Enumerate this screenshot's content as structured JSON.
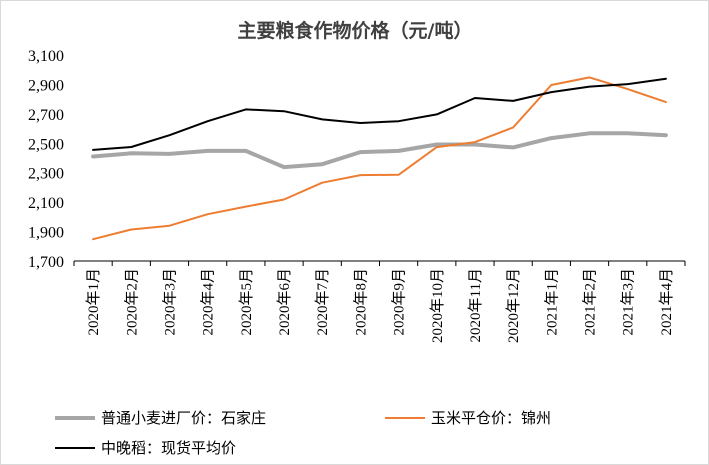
{
  "chart_data": {
    "type": "line",
    "title": "主要粮食作物价格（元/吨）",
    "xlabel": "",
    "ylabel": "",
    "ylim": [
      1700,
      3100
    ],
    "yticks": [
      1700,
      1900,
      2100,
      2300,
      2500,
      2700,
      2900,
      3100
    ],
    "ytick_labels": [
      "1,700",
      "1,900",
      "2,100",
      "2,300",
      "2,500",
      "2,700",
      "2,900",
      "3,100"
    ],
    "grid": false,
    "legend_position": "bottom",
    "categories": [
      "2020年1月",
      "2020年2月",
      "2020年3月",
      "2020年4月",
      "2020年5月",
      "2020年6月",
      "2020年7月",
      "2020年8月",
      "2020年9月",
      "2020年10月",
      "2020年11月",
      "2020年12月",
      "2021年1月",
      "2021年2月",
      "2021年3月",
      "2021年4月"
    ],
    "series": [
      {
        "name": "普通小麦进厂价：石家庄",
        "color": "#a6a6a6",
        "width": 4,
        "values": [
          2410,
          2432,
          2428,
          2448,
          2448,
          2338,
          2358,
          2440,
          2448,
          2492,
          2492,
          2472,
          2535,
          2568,
          2568,
          2555
        ]
      },
      {
        "name": "玉米平仓价：锦州",
        "color": "#ed7d31",
        "width": 2,
        "values": [
          1848,
          1914,
          1940,
          2018,
          2070,
          2118,
          2232,
          2284,
          2286,
          2474,
          2508,
          2608,
          2896,
          2948,
          2868,
          2780
        ]
      },
      {
        "name": "中晚稻：现货平均价",
        "color": "#000000",
        "width": 2,
        "values": [
          2455,
          2475,
          2555,
          2650,
          2730,
          2718,
          2662,
          2638,
          2650,
          2696,
          2808,
          2788,
          2848,
          2885,
          2902,
          2938
        ]
      }
    ]
  }
}
